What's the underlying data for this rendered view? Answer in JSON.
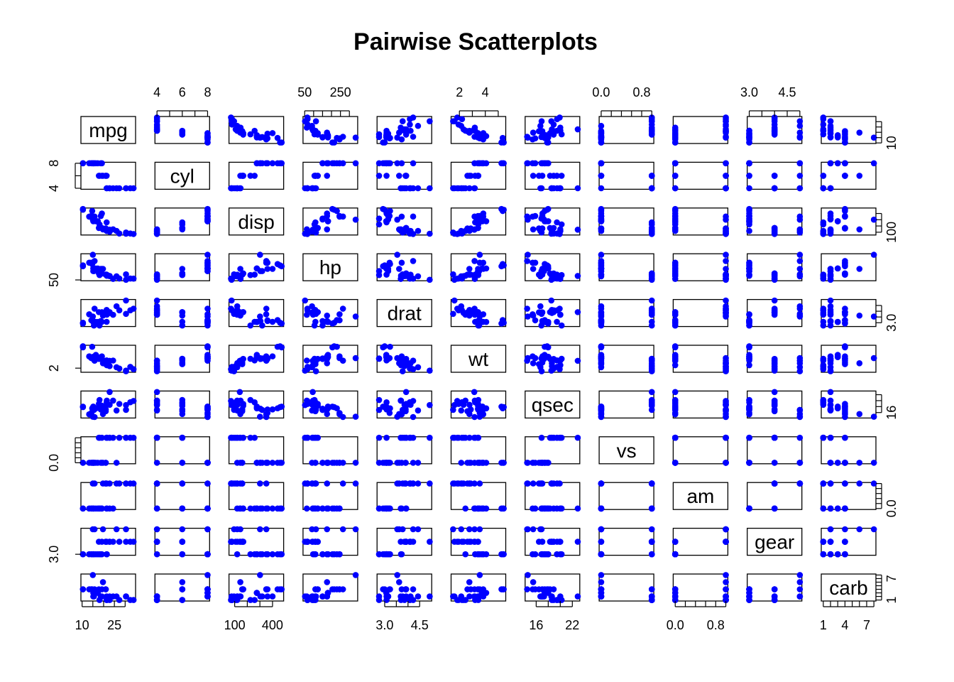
{
  "chart_data": {
    "type": "scatter",
    "title": "Pairwise Scatterplots",
    "point_color": "#0000FF",
    "variables": [
      "mpg",
      "cyl",
      "disp",
      "hp",
      "drat",
      "wt",
      "qsec",
      "vs",
      "am",
      "gear",
      "carb"
    ],
    "ranges": {
      "mpg": [
        10.4,
        33.9
      ],
      "cyl": [
        4,
        8
      ],
      "disp": [
        71.1,
        472
      ],
      "hp": [
        52,
        335
      ],
      "drat": [
        2.76,
        4.93
      ],
      "wt": [
        1.513,
        5.424
      ],
      "qsec": [
        14.5,
        22.9
      ],
      "vs": [
        0,
        1
      ],
      "am": [
        0,
        1
      ],
      "gear": [
        3,
        5
      ],
      "carb": [
        1,
        8
      ]
    },
    "axes": {
      "top": [
        {
          "col": 1,
          "ticks": [
            4,
            5,
            6,
            7,
            8
          ],
          "labels": [
            "4",
            "6",
            "8"
          ]
        },
        {
          "col": 3,
          "ticks": [
            50,
            100,
            150,
            200,
            250,
            300
          ],
          "labels": [
            "50",
            "250"
          ]
        },
        {
          "col": 5,
          "ticks": [
            2,
            3,
            4,
            5
          ],
          "labels": [
            "2",
            "4"
          ]
        },
        {
          "col": 7,
          "ticks": [
            0,
            0.2,
            0.4,
            0.6,
            0.8,
            1
          ],
          "labels": [
            "0.0",
            "0.8"
          ]
        },
        {
          "col": 9,
          "ticks": [
            3,
            3.5,
            4,
            4.5,
            5
          ],
          "labels": [
            "3.0",
            "4.5"
          ]
        }
      ],
      "bottom": [
        {
          "col": 0,
          "ticks": [
            10,
            15,
            20,
            25,
            30
          ],
          "labels": [
            "10",
            "25"
          ]
        },
        {
          "col": 2,
          "ticks": [
            100,
            200,
            300,
            400
          ],
          "labels": [
            "100",
            "400"
          ]
        },
        {
          "col": 4,
          "ticks": [
            3,
            3.5,
            4,
            4.5
          ],
          "labels": [
            "3.0",
            "4.5"
          ]
        },
        {
          "col": 6,
          "ticks": [
            16,
            18,
            20,
            22
          ],
          "labels": [
            "16",
            "22"
          ]
        },
        {
          "col": 8,
          "ticks": [
            0,
            0.2,
            0.4,
            0.6,
            0.8,
            1
          ],
          "labels": [
            "0.0",
            "0.8"
          ]
        },
        {
          "col": 10,
          "ticks": [
            1,
            2,
            3,
            4,
            5,
            6,
            7,
            8
          ],
          "labels": [
            "1",
            "4",
            "7"
          ]
        }
      ],
      "left": [
        {
          "row": 1,
          "ticks": [
            4,
            6,
            8
          ],
          "labels": [
            "4",
            "8"
          ]
        },
        {
          "row": 3,
          "ticks": [
            50
          ],
          "labels": [
            "50"
          ]
        },
        {
          "row": 5,
          "ticks": [
            2
          ],
          "labels": [
            "2"
          ]
        },
        {
          "row": 7,
          "ticks": [
            0,
            0.2,
            0.4,
            0.6,
            0.8,
            1
          ],
          "labels": [
            "0.0"
          ]
        },
        {
          "row": 9,
          "ticks": [
            3
          ],
          "labels": [
            "3.0"
          ]
        }
      ],
      "right": [
        {
          "row": 0,
          "ticks": [
            10,
            15,
            20,
            25,
            30
          ],
          "labels": [
            "10"
          ]
        },
        {
          "row": 2,
          "ticks": [
            100,
            200,
            300,
            400
          ],
          "labels": [
            "100"
          ]
        },
        {
          "row": 4,
          "ticks": [
            3,
            3.5,
            4,
            4.5
          ],
          "labels": [
            "3.0"
          ]
        },
        {
          "row": 6,
          "ticks": [
            16,
            18,
            20,
            22
          ],
          "labels": [
            "16"
          ]
        },
        {
          "row": 8,
          "ticks": [
            0,
            0.2,
            0.4,
            0.6,
            0.8,
            1
          ],
          "labels": [
            "0.0"
          ]
        },
        {
          "row": 10,
          "ticks": [
            1,
            2,
            3,
            4,
            5,
            6,
            7,
            8
          ],
          "labels": [
            "1",
            "7"
          ]
        }
      ]
    },
    "records": [
      [
        21,
        6,
        160,
        110,
        3.9,
        2.62,
        16.46,
        0,
        1,
        4,
        4
      ],
      [
        21,
        6,
        160,
        110,
        3.9,
        2.875,
        17.02,
        0,
        1,
        4,
        4
      ],
      [
        22.8,
        4,
        108,
        93,
        3.85,
        2.32,
        18.61,
        1,
        1,
        4,
        1
      ],
      [
        21.4,
        6,
        258,
        110,
        3.08,
        3.215,
        19.44,
        1,
        0,
        3,
        1
      ],
      [
        18.7,
        8,
        360,
        175,
        3.15,
        3.44,
        17.02,
        0,
        0,
        3,
        2
      ],
      [
        18.1,
        6,
        225,
        105,
        2.76,
        3.46,
        20.22,
        1,
        0,
        3,
        1
      ],
      [
        14.3,
        8,
        360,
        245,
        3.21,
        3.57,
        15.84,
        0,
        0,
        3,
        4
      ],
      [
        24.4,
        4,
        146.7,
        62,
        3.69,
        3.19,
        20,
        1,
        0,
        4,
        2
      ],
      [
        22.8,
        4,
        140.8,
        95,
        3.92,
        3.15,
        22.9,
        1,
        0,
        4,
        2
      ],
      [
        19.2,
        6,
        167.6,
        123,
        3.92,
        3.44,
        18.3,
        1,
        0,
        4,
        4
      ],
      [
        17.8,
        6,
        167.6,
        123,
        3.92,
        3.44,
        18.9,
        1,
        0,
        4,
        4
      ],
      [
        16.4,
        8,
        275.8,
        180,
        3.07,
        4.07,
        17.4,
        0,
        0,
        3,
        3
      ],
      [
        17.3,
        8,
        275.8,
        180,
        3.07,
        3.73,
        17.6,
        0,
        0,
        3,
        3
      ],
      [
        15.2,
        8,
        275.8,
        180,
        3.07,
        3.78,
        18,
        0,
        0,
        3,
        3
      ],
      [
        10.4,
        8,
        472,
        205,
        2.93,
        5.25,
        17.98,
        0,
        0,
        3,
        4
      ],
      [
        10.4,
        8,
        460,
        215,
        3,
        5.424,
        17.82,
        0,
        0,
        3,
        4
      ],
      [
        14.7,
        8,
        440,
        230,
        3.23,
        5.345,
        17.42,
        0,
        0,
        3,
        4
      ],
      [
        32.4,
        4,
        78.7,
        66,
        4.08,
        2.2,
        19.47,
        1,
        1,
        4,
        1
      ],
      [
        30.4,
        4,
        75.7,
        52,
        4.93,
        1.615,
        18.52,
        1,
        1,
        4,
        2
      ],
      [
        33.9,
        4,
        71.1,
        65,
        4.22,
        1.835,
        19.9,
        1,
        1,
        4,
        1
      ],
      [
        21.5,
        4,
        120.1,
        97,
        3.7,
        2.465,
        20.01,
        1,
        0,
        3,
        1
      ],
      [
        15.5,
        8,
        318,
        150,
        2.76,
        3.52,
        16.87,
        0,
        0,
        3,
        2
      ],
      [
        15.2,
        8,
        304,
        150,
        3.15,
        3.435,
        17.3,
        0,
        0,
        3,
        2
      ],
      [
        13.3,
        8,
        350,
        245,
        3.73,
        3.84,
        15.41,
        0,
        0,
        3,
        4
      ],
      [
        19.2,
        8,
        400,
        175,
        3.08,
        3.845,
        17.05,
        0,
        0,
        3,
        2
      ],
      [
        27.3,
        4,
        79,
        66,
        4.08,
        1.935,
        18.9,
        1,
        1,
        4,
        1
      ],
      [
        26,
        4,
        120.3,
        91,
        4.43,
        2.14,
        16.7,
        0,
        1,
        5,
        2
      ],
      [
        30.4,
        4,
        95.1,
        113,
        3.77,
        1.513,
        16.9,
        1,
        1,
        5,
        2
      ],
      [
        15.8,
        8,
        351,
        264,
        4.22,
        3.17,
        14.5,
        0,
        1,
        5,
        4
      ],
      [
        19.7,
        6,
        145,
        175,
        3.62,
        2.77,
        15.5,
        0,
        1,
        5,
        6
      ],
      [
        15,
        8,
        301,
        335,
        3.54,
        3.57,
        14.6,
        0,
        1,
        5,
        8
      ],
      [
        21.4,
        4,
        121,
        109,
        4.11,
        2.78,
        18.6,
        1,
        1,
        4,
        2
      ]
    ]
  }
}
